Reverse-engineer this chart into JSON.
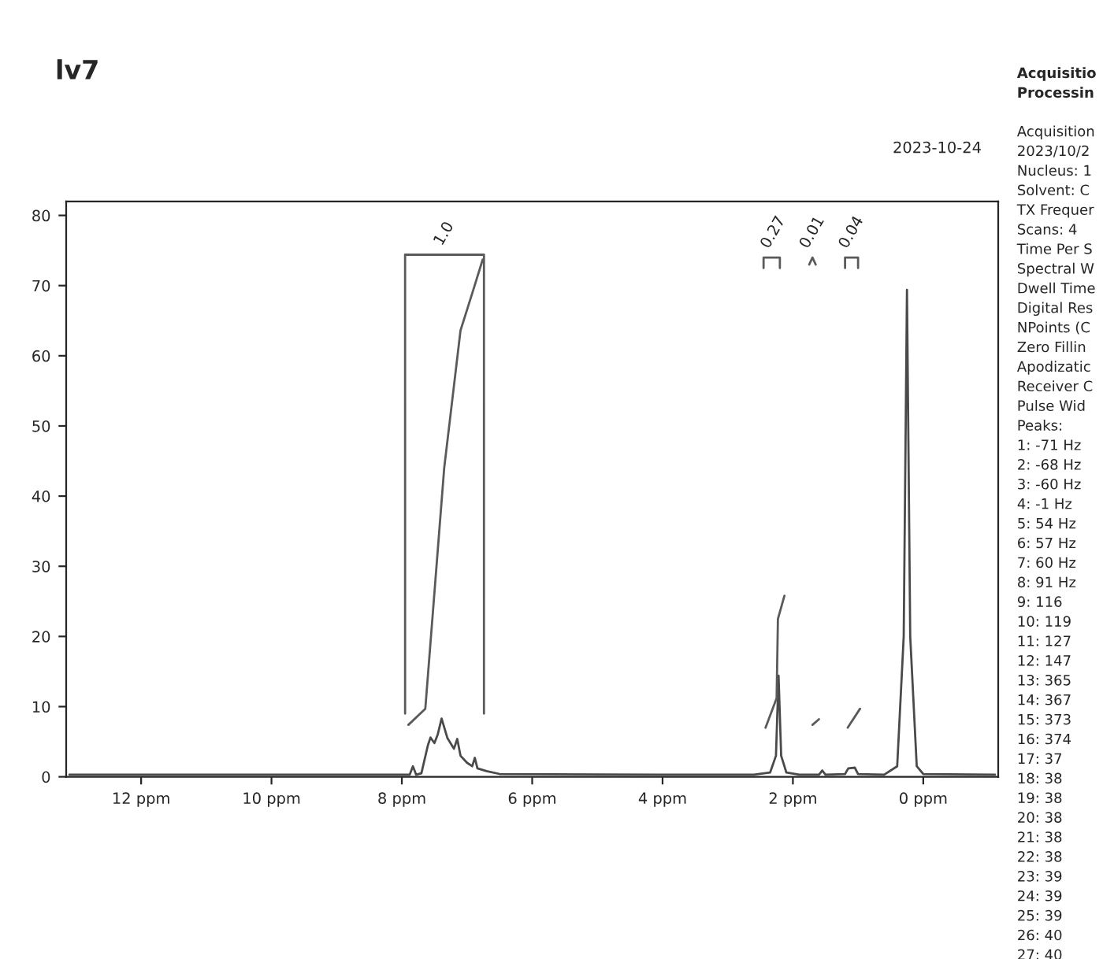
{
  "chart_data": {
    "type": "line",
    "title": "lv7",
    "xlim": [
      13.15,
      -1.15
    ],
    "ylim": [
      0,
      82
    ],
    "xticks": [
      {
        "value": 12,
        "label": "12 ppm"
      },
      {
        "value": 10,
        "label": "10 ppm"
      },
      {
        "value": 8,
        "label": "8 ppm"
      },
      {
        "value": 6,
        "label": "6 ppm"
      },
      {
        "value": 4,
        "label": "4 ppm"
      },
      {
        "value": 2,
        "label": "2 ppm"
      },
      {
        "value": 0,
        "label": "0 ppm"
      }
    ],
    "yticks": [
      0,
      10,
      20,
      30,
      40,
      50,
      60,
      70,
      80
    ],
    "grid": false,
    "marker": "none",
    "line_style": "solid",
    "series": [
      {
        "color": "#4a4a4a",
        "x": [
          13.1,
          8.2,
          7.88,
          7.83,
          7.78,
          7.7,
          7.6,
          7.56,
          7.5,
          7.45,
          7.39,
          7.3,
          7.2,
          7.15,
          7.1,
          7.0,
          6.92,
          6.88,
          6.84,
          6.7,
          6.5,
          4,
          2.6,
          2.35,
          2.26,
          2.22,
          2.18,
          2.1,
          1.9,
          1.6,
          1.55,
          1.5,
          1.2,
          1.15,
          1.05,
          1.0,
          0.6,
          0.4,
          0.3,
          0.25,
          0.2,
          0.1,
          0.0,
          -1.1
        ],
        "values": [
          0.3,
          0.3,
          0.3,
          1.5,
          0.3,
          0.5,
          4.5,
          5.6,
          4.8,
          6.0,
          8.3,
          5.5,
          4.0,
          5.4,
          3.0,
          2.0,
          1.5,
          2.7,
          1.2,
          0.8,
          0.4,
          0.3,
          0.3,
          0.6,
          3,
          14.4,
          3,
          0.6,
          0.3,
          0.3,
          0.9,
          0.3,
          0.4,
          1.2,
          1.3,
          0.4,
          0.3,
          1.5,
          20,
          69.4,
          20,
          1.5,
          0.4,
          0.3
        ]
      },
      {
        "color": "#5a5a5a",
        "x": [
          7.9,
          7.64,
          7.35,
          7.1,
          6.91,
          6.76
        ],
        "values": [
          7.4,
          9.7,
          44,
          63.6,
          69.2,
          73.7
        ]
      },
      {
        "color": "#5a5a5a",
        "x": [
          7.95,
          7.95,
          6.74,
          6.74
        ],
        "values": [
          9,
          74.4,
          74.4,
          9
        ]
      },
      {
        "color": "#5a5a5a",
        "x": [
          2.42,
          2.25,
          2.23,
          2.13
        ],
        "values": [
          7.0,
          11.2,
          22.5,
          25.8
        ]
      },
      {
        "color": "#5a5a5a",
        "x": [
          1.7,
          1.6
        ],
        "values": [
          7.4,
          8.2
        ]
      },
      {
        "color": "#5a5a5a",
        "x": [
          1.16,
          0.97
        ],
        "values": [
          7.0,
          9.7
        ]
      },
      {
        "color": "#5a5a5a",
        "x": [
          2.45,
          2.45,
          2.2,
          2.2
        ],
        "values": [
          72.5,
          74,
          74,
          72.5
        ]
      },
      {
        "color": "#5a5a5a",
        "x": [
          1.75,
          1.7,
          1.65
        ],
        "values": [
          73,
          74,
          73
        ]
      },
      {
        "color": "#5a5a5a",
        "x": [
          1.2,
          1.2,
          1.0,
          1.0
        ],
        "values": [
          72.5,
          74,
          74,
          72.5
        ]
      }
    ],
    "annotations": [
      "2023-10-24",
      {
        "text": "1.0",
        "x": 7.35,
        "y": 74.4
      },
      {
        "text": "0.27",
        "x": 2.3,
        "y": 74
      },
      {
        "text": "0.01",
        "x": 1.7,
        "y": 74
      },
      {
        "text": "0.04",
        "x": 1.1,
        "y": 74
      },
      "Acquisitio",
      "Processin",
      "Acquisition",
      "2023/10/2",
      "Nucleus: 1",
      "Solvent: C",
      "TX Frequer",
      "Scans: 4",
      "Time Per S",
      "Spectral W",
      "Dwell Time",
      "Digital Res",
      "NPoints (C",
      "Zero Fillin",
      "Apodizatic",
      "Receiver C",
      "Pulse Wid",
      "Peaks:",
      "1: -71 Hz",
      "2: -68 Hz",
      "3: -60 Hz",
      "4: -1 Hz",
      "5: 54 Hz",
      "6: 57 Hz",
      "7: 60 Hz",
      "8: 91 Hz",
      "9: 116",
      "10: 119",
      "11: 127",
      "12: 147",
      "13: 365",
      "14: 367",
      "15: 373",
      "16: 374",
      "17: 37",
      "18: 38",
      "19: 38",
      "20: 38",
      "21: 38",
      "22: 38",
      "23: 39",
      "24: 39",
      "25: 39",
      "26: 40",
      "27: 40"
    ]
  }
}
